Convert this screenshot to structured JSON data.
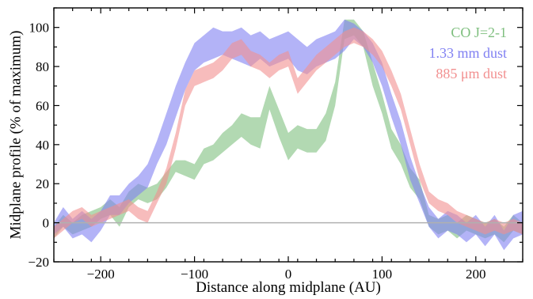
{
  "chart_data": {
    "type": "area",
    "xlabel": "Distance along midplane (AU)",
    "ylabel": "Midplane profile (% of maximum)",
    "xlim": [
      -250,
      250
    ],
    "ylim": [
      -20,
      110
    ],
    "x_ticks": [
      -200,
      -100,
      0,
      100,
      200
    ],
    "y_ticks": [
      -20,
      0,
      20,
      40,
      60,
      80,
      100
    ],
    "x_tick_labels": [
      "−200",
      "−100",
      "0",
      "100",
      "200"
    ],
    "y_tick_labels": [
      "−20",
      "0",
      "20",
      "40",
      "60",
      "80",
      "100"
    ],
    "reference_line_y": 0,
    "legend_position": "top-right",
    "series": [
      {
        "name": "CO J=2-1",
        "color": "#7fbf7f",
        "x": [
          -250,
          -240,
          -230,
          -220,
          -210,
          -200,
          -190,
          -180,
          -170,
          -160,
          -150,
          -140,
          -130,
          -120,
          -110,
          -100,
          -90,
          -80,
          -70,
          -60,
          -50,
          -40,
          -30,
          -20,
          -10,
          0,
          10,
          20,
          30,
          40,
          50,
          60,
          70,
          80,
          90,
          100,
          110,
          120,
          130,
          140,
          150,
          160,
          170,
          180,
          190,
          200,
          210,
          220,
          230,
          240,
          250
        ],
        "low": [
          -8,
          -2,
          -6,
          -4,
          -2,
          2,
          4,
          -2,
          8,
          12,
          10,
          12,
          18,
          26,
          24,
          22,
          30,
          32,
          36,
          40,
          44,
          40,
          38,
          58,
          44,
          32,
          38,
          36,
          36,
          42,
          60,
          94,
          96,
          90,
          70,
          56,
          38,
          30,
          18,
          12,
          -2,
          -6,
          -4,
          -8,
          -4,
          -6,
          -8,
          -6,
          -10,
          -4,
          -6
        ],
        "high": [
          -2,
          4,
          0,
          4,
          6,
          8,
          12,
          8,
          16,
          20,
          18,
          20,
          26,
          32,
          32,
          30,
          38,
          40,
          46,
          50,
          56,
          54,
          54,
          70,
          58,
          46,
          50,
          48,
          48,
          56,
          72,
          104,
          104,
          98,
          82,
          66,
          48,
          40,
          28,
          22,
          4,
          2,
          4,
          0,
          4,
          2,
          0,
          2,
          -2,
          4,
          0
        ]
      },
      {
        "name": "1.33 mm dust",
        "color": "#8080f2",
        "x": [
          -250,
          -240,
          -230,
          -220,
          -210,
          -200,
          -190,
          -180,
          -170,
          -160,
          -150,
          -140,
          -130,
          -120,
          -110,
          -100,
          -90,
          -80,
          -70,
          -60,
          -50,
          -40,
          -30,
          -20,
          -10,
          0,
          10,
          20,
          30,
          40,
          50,
          60,
          70,
          80,
          90,
          100,
          110,
          120,
          130,
          140,
          150,
          160,
          170,
          180,
          190,
          200,
          210,
          220,
          230,
          240,
          250
        ],
        "low": [
          -6,
          -2,
          -8,
          -6,
          -10,
          -4,
          4,
          4,
          10,
          14,
          18,
          30,
          40,
          54,
          68,
          78,
          82,
          84,
          86,
          84,
          82,
          80,
          84,
          80,
          82,
          84,
          78,
          76,
          80,
          82,
          84,
          88,
          94,
          90,
          82,
          70,
          54,
          40,
          22,
          10,
          -2,
          -8,
          -4,
          -6,
          -10,
          -6,
          -12,
          -6,
          -14,
          -8,
          -6
        ],
        "high": [
          0,
          8,
          2,
          6,
          2,
          6,
          14,
          14,
          20,
          24,
          30,
          42,
          56,
          70,
          82,
          92,
          96,
          100,
          98,
          98,
          100,
          96,
          98,
          94,
          96,
          98,
          94,
          90,
          94,
          96,
          98,
          104,
          102,
          98,
          92,
          82,
          66,
          52,
          34,
          20,
          8,
          2,
          6,
          4,
          0,
          4,
          -2,
          4,
          -4,
          4,
          6
        ]
      },
      {
        "name": "885 μm dust",
        "color": "#f29090",
        "x": [
          -250,
          -240,
          -230,
          -220,
          -210,
          -200,
          -190,
          -180,
          -170,
          -160,
          -150,
          -140,
          -130,
          -120,
          -110,
          -100,
          -90,
          -80,
          -70,
          -60,
          -50,
          -40,
          -30,
          -20,
          -10,
          0,
          10,
          20,
          30,
          40,
          50,
          60,
          70,
          80,
          90,
          100,
          110,
          120,
          130,
          140,
          150,
          160,
          170,
          180,
          190,
          200,
          210,
          220,
          230,
          240,
          250
        ],
        "low": [
          -8,
          -4,
          0,
          2,
          -2,
          0,
          2,
          4,
          6,
          2,
          0,
          10,
          20,
          38,
          60,
          70,
          72,
          74,
          78,
          84,
          86,
          80,
          78,
          74,
          78,
          80,
          66,
          72,
          78,
          82,
          86,
          90,
          92,
          90,
          86,
          80,
          70,
          58,
          40,
          22,
          10,
          6,
          4,
          0,
          -2,
          -4,
          -6,
          -4,
          -6,
          -4,
          -6
        ],
        "high": [
          -2,
          2,
          6,
          8,
          4,
          6,
          8,
          10,
          12,
          8,
          6,
          16,
          28,
          46,
          68,
          78,
          80,
          82,
          86,
          92,
          94,
          88,
          86,
          82,
          86,
          88,
          74,
          80,
          86,
          90,
          94,
          98,
          100,
          98,
          94,
          88,
          78,
          66,
          48,
          30,
          16,
          12,
          10,
          6,
          4,
          2,
          0,
          2,
          0,
          2,
          0
        ]
      }
    ]
  }
}
